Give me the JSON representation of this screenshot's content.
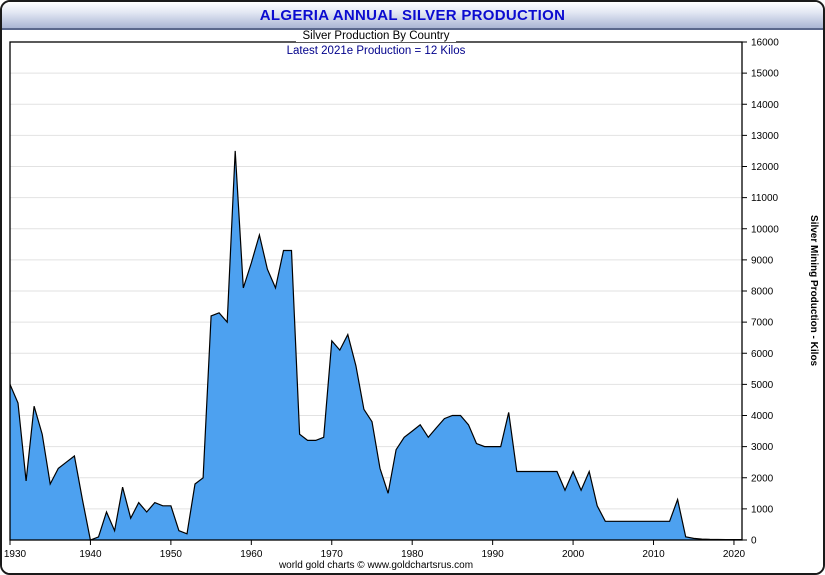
{
  "window": {
    "title": "ALGERIA ANNUAL SILVER PRODUCTION",
    "subtitle": "Silver Production By Country",
    "annotation": "Latest 2021e Production = 12 Kilos",
    "footer": "world gold charts © www.goldchartsrus.com",
    "y_axis_title": "Silver Mining Production - Kilos"
  },
  "chart_data": {
    "type": "area",
    "title": "ALGERIA ANNUAL SILVER PRODUCTION",
    "subtitle": "Silver Production By Country",
    "annotation": "Latest 2021e Production = 12 Kilos",
    "xlabel": "",
    "ylabel": "Silver Mining Production - Kilos",
    "xlim": [
      1930,
      2021
    ],
    "ylim": [
      0,
      16000
    ],
    "x_start": 1930,
    "x_end": 2021,
    "x_ticks": [
      1930,
      1940,
      1950,
      1960,
      1970,
      1980,
      1990,
      2000,
      2010,
      2020
    ],
    "y_ticks": [
      0,
      1000,
      2000,
      3000,
      4000,
      5000,
      6000,
      7000,
      8000,
      9000,
      10000,
      11000,
      12000,
      13000,
      14000,
      15000,
      16000
    ],
    "grid": "horizontal",
    "legend": "none",
    "fill_color": "#4DA1F0",
    "line_color": "#000000",
    "values": [
      5000,
      4400,
      1900,
      4300,
      3400,
      1800,
      2300,
      2500,
      2700,
      1300,
      0,
      100,
      900,
      300,
      1700,
      700,
      1200,
      900,
      1200,
      1100,
      1100,
      300,
      200,
      1800,
      2000,
      7200,
      7300,
      7000,
      12500,
      8100,
      8900,
      9800,
      8700,
      8100,
      9300,
      9300,
      3400,
      3200,
      3200,
      3300,
      6400,
      6100,
      6600,
      5600,
      4200,
      3800,
      2300,
      1500,
      2900,
      3300,
      3500,
      3700,
      3300,
      3600,
      3900,
      4000,
      4000,
      3700,
      3100,
      3000,
      3000,
      3000,
      4100,
      2200,
      2200,
      2200,
      2200,
      2200,
      2200,
      1600,
      2200,
      1600,
      2200,
      1100,
      600,
      600,
      600,
      600,
      600,
      600,
      600,
      600,
      600,
      1300,
      100,
      50,
      30,
      20,
      15,
      12,
      12,
      12
    ]
  }
}
